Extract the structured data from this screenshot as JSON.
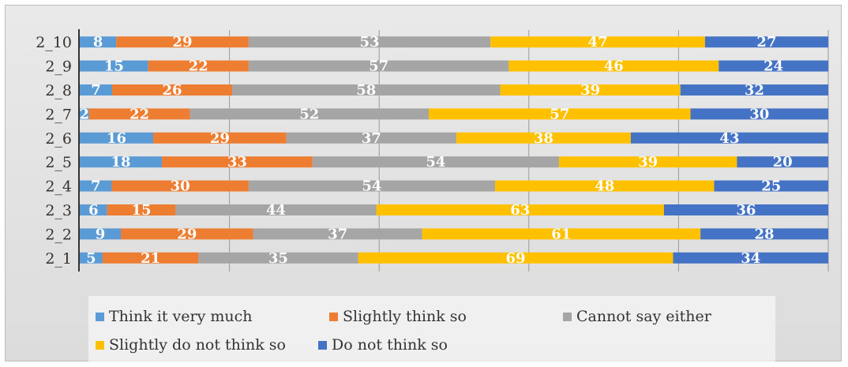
{
  "chart_data": {
    "type": "bar",
    "orientation": "horizontal",
    "stacked": true,
    "normalized": true,
    "categories": [
      "2_1",
      "2_2",
      "2_3",
      "2_4",
      "2_5",
      "2_6",
      "2_7",
      "2_8",
      "2_9",
      "2_10"
    ],
    "series": [
      {
        "name": "Think it very much",
        "color": "#5b9bd5",
        "values": [
          5,
          9,
          6,
          7,
          18,
          16,
          2,
          7,
          15,
          8
        ]
      },
      {
        "name": "Slightly think so",
        "color": "#ed7d31",
        "values": [
          21,
          29,
          15,
          30,
          33,
          29,
          22,
          26,
          22,
          29
        ]
      },
      {
        "name": "Cannot say either",
        "color": "#a5a5a5",
        "values": [
          35,
          37,
          44,
          54,
          54,
          37,
          52,
          58,
          57,
          53
        ]
      },
      {
        "name": "Slightly do not think so",
        "color": "#ffc000",
        "values": [
          69,
          61,
          63,
          48,
          39,
          38,
          57,
          39,
          46,
          47
        ]
      },
      {
        "name": "Do not think so",
        "color": "#4472c4",
        "values": [
          34,
          28,
          36,
          25,
          20,
          43,
          30,
          32,
          24,
          27
        ]
      }
    ],
    "legend_position": "bottom",
    "grid": true
  }
}
